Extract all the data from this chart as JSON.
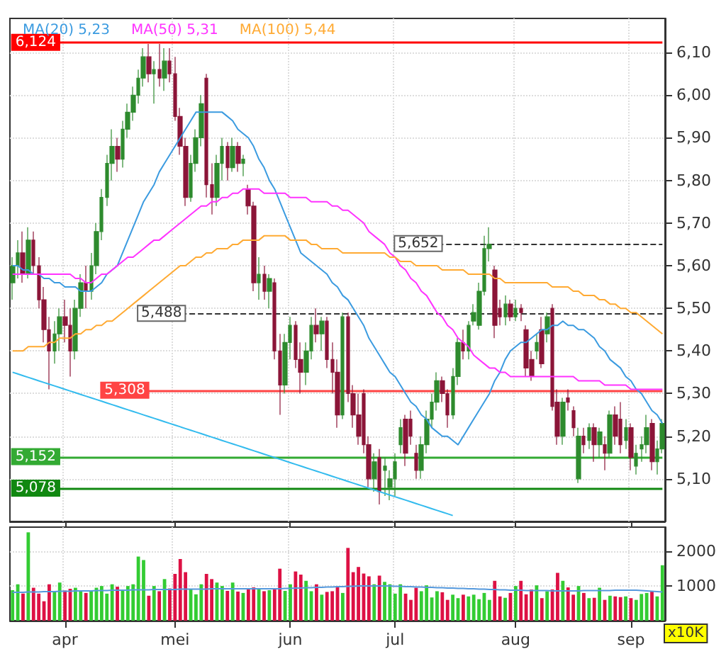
{
  "chart_data": [
    {
      "type": "candlestick",
      "categories": [
        null,
        null,
        null,
        null,
        null,
        null,
        null,
        null,
        null,
        null,
        null,
        null,
        null,
        null,
        null,
        null,
        null,
        null,
        null,
        null,
        null,
        null,
        null,
        null,
        null,
        null,
        null,
        null,
        null,
        null,
        null,
        null,
        null,
        null,
        null,
        null,
        null,
        null,
        null,
        null,
        null,
        null,
        null,
        null,
        null,
        null,
        null,
        null,
        null,
        null,
        null,
        null,
        null,
        null,
        null,
        null,
        null,
        null,
        null,
        null,
        null,
        null,
        null,
        null,
        null,
        null,
        null,
        null,
        null,
        null,
        null,
        null,
        null,
        null,
        null,
        null,
        null,
        null,
        null,
        null,
        null,
        null,
        null,
        null,
        null,
        null,
        null,
        null,
        null,
        null,
        null,
        null,
        null,
        null,
        null,
        null,
        null,
        null,
        null,
        null,
        null,
        null,
        null,
        null,
        null,
        null,
        null,
        null,
        null,
        null,
        null,
        null,
        null,
        null,
        null,
        null,
        null,
        null,
        null,
        null,
        null,
        null,
        null,
        null,
        null
      ],
      "ohlc": [
        [
          5.56,
          5.62,
          5.52,
          5.6
        ],
        [
          5.6,
          5.66,
          5.57,
          5.63
        ],
        [
          5.63,
          5.68,
          5.56,
          5.58
        ],
        [
          5.58,
          5.69,
          5.57,
          5.66
        ],
        [
          5.66,
          5.68,
          5.58,
          5.6
        ],
        [
          5.6,
          5.62,
          5.5,
          5.52
        ],
        [
          5.52,
          5.55,
          5.42,
          5.45
        ],
        [
          5.45,
          5.48,
          5.31,
          5.4
        ],
        [
          5.4,
          5.47,
          5.37,
          5.44
        ],
        [
          5.44,
          5.5,
          5.4,
          5.48
        ],
        [
          5.48,
          5.52,
          5.42,
          5.46
        ],
        [
          5.46,
          5.5,
          5.34,
          5.4
        ],
        [
          5.4,
          5.52,
          5.38,
          5.5
        ],
        [
          5.5,
          5.58,
          5.48,
          5.56
        ],
        [
          5.56,
          5.6,
          5.5,
          5.54
        ],
        [
          5.54,
          5.63,
          5.52,
          5.6
        ],
        [
          5.6,
          5.7,
          5.58,
          5.68
        ],
        [
          5.68,
          5.78,
          5.66,
          5.76
        ],
        [
          5.76,
          5.86,
          5.74,
          5.84
        ],
        [
          5.84,
          5.92,
          5.8,
          5.88
        ],
        [
          5.88,
          5.9,
          5.82,
          5.85
        ],
        [
          5.85,
          5.94,
          5.83,
          5.92
        ],
        [
          5.92,
          5.98,
          5.9,
          5.96
        ],
        [
          5.96,
          6.02,
          5.94,
          6.0
        ],
        [
          6.0,
          6.06,
          5.98,
          6.04
        ],
        [
          6.04,
          6.11,
          6.02,
          6.09
        ],
        [
          6.09,
          6.12,
          6.03,
          6.05
        ],
        [
          6.05,
          6.08,
          5.98,
          6.06
        ],
        [
          6.06,
          6.12,
          6.02,
          6.04
        ],
        [
          6.04,
          6.11,
          6.01,
          6.08
        ],
        [
          6.08,
          6.11,
          6.03,
          6.05
        ],
        [
          6.05,
          6.09,
          5.94,
          5.95
        ],
        [
          5.95,
          5.97,
          5.86,
          5.88
        ],
        [
          5.88,
          5.9,
          5.74,
          5.76
        ],
        [
          5.76,
          5.86,
          5.75,
          5.84
        ],
        [
          5.84,
          5.92,
          5.82,
          5.9
        ],
        [
          5.9,
          6.0,
          5.88,
          5.98
        ],
        [
          6.04,
          6.05,
          5.76,
          5.79
        ],
        [
          5.79,
          5.84,
          5.72,
          5.76
        ],
        [
          5.76,
          5.86,
          5.74,
          5.84
        ],
        [
          5.84,
          5.9,
          5.8,
          5.88
        ],
        [
          5.88,
          5.89,
          5.8,
          5.83
        ],
        [
          5.83,
          5.9,
          5.82,
          5.88
        ],
        [
          5.88,
          5.89,
          5.82,
          5.84
        ],
        [
          5.84,
          5.86,
          5.81,
          5.85
        ],
        [
          5.78,
          5.79,
          5.72,
          5.74
        ],
        [
          5.74,
          5.75,
          5.54,
          5.56
        ],
        [
          5.56,
          5.62,
          5.52,
          5.58
        ],
        [
          5.58,
          5.6,
          5.52,
          5.54
        ],
        [
          5.54,
          5.58,
          5.5,
          5.57
        ],
        [
          5.56,
          5.57,
          5.38,
          5.4
        ],
        [
          5.4,
          5.44,
          5.25,
          5.32
        ],
        [
          5.32,
          5.44,
          5.3,
          5.42
        ],
        [
          5.42,
          5.48,
          5.38,
          5.46
        ],
        [
          5.46,
          5.47,
          5.36,
          5.38
        ],
        [
          5.38,
          5.42,
          5.3,
          5.35
        ],
        [
          5.35,
          5.42,
          5.32,
          5.4
        ],
        [
          5.4,
          5.48,
          5.38,
          5.46
        ],
        [
          5.46,
          5.5,
          5.42,
          5.44
        ],
        [
          5.44,
          5.48,
          5.4,
          5.47
        ],
        [
          5.47,
          5.48,
          5.36,
          5.38
        ],
        [
          5.38,
          5.42,
          5.3,
          5.35
        ],
        [
          5.35,
          5.38,
          5.22,
          5.25
        ],
        [
          5.25,
          5.49,
          5.24,
          5.48
        ],
        [
          5.48,
          5.49,
          5.28,
          5.3
        ],
        [
          5.3,
          5.32,
          5.22,
          5.25
        ],
        [
          5.25,
          5.3,
          5.18,
          5.2
        ],
        [
          5.3,
          5.31,
          5.16,
          5.18
        ],
        [
          5.18,
          5.2,
          5.08,
          5.1
        ],
        [
          5.1,
          5.16,
          5.07,
          5.14
        ],
        [
          5.15,
          5.17,
          5.04,
          5.07
        ],
        [
          5.12,
          5.15,
          5.06,
          5.13
        ],
        [
          5.08,
          5.12,
          5.05,
          5.1
        ],
        [
          5.1,
          5.16,
          5.06,
          5.14
        ],
        [
          5.18,
          5.24,
          5.16,
          5.22
        ],
        [
          5.24,
          5.25,
          5.13,
          5.16
        ],
        [
          5.24,
          5.26,
          5.18,
          5.2
        ],
        [
          5.16,
          5.18,
          5.1,
          5.12
        ],
        [
          5.12,
          5.2,
          5.1,
          5.18
        ],
        [
          5.18,
          5.26,
          5.16,
          5.24
        ],
        [
          5.24,
          5.3,
          5.22,
          5.28
        ],
        [
          5.28,
          5.35,
          5.26,
          5.33
        ],
        [
          5.33,
          5.34,
          5.28,
          5.3
        ],
        [
          5.3,
          5.31,
          5.22,
          5.25
        ],
        [
          5.25,
          5.36,
          5.24,
          5.34
        ],
        [
          5.34,
          5.43,
          5.32,
          5.42
        ],
        [
          5.42,
          5.45,
          5.38,
          5.4
        ],
        [
          5.4,
          5.47,
          5.38,
          5.46
        ],
        [
          5.47,
          5.51,
          5.46,
          5.49
        ],
        [
          5.46,
          5.56,
          5.45,
          5.54
        ],
        [
          5.54,
          5.67,
          5.53,
          5.64
        ],
        [
          5.64,
          5.69,
          5.61,
          5.65
        ],
        [
          5.59,
          5.6,
          5.43,
          5.46
        ],
        [
          5.5,
          5.52,
          5.46,
          5.48
        ],
        [
          5.48,
          5.53,
          5.46,
          5.51
        ],
        [
          5.51,
          5.52,
          5.47,
          5.48
        ],
        [
          5.48,
          5.52,
          5.47,
          5.5
        ],
        [
          5.5,
          5.51,
          5.47,
          5.49
        ],
        [
          5.45,
          5.46,
          5.34,
          5.36
        ],
        [
          5.38,
          5.4,
          5.33,
          5.34
        ],
        [
          5.4,
          5.44,
          5.38,
          5.42
        ],
        [
          5.45,
          5.48,
          5.36,
          5.37
        ],
        [
          5.44,
          5.49,
          5.42,
          5.48
        ],
        [
          5.5,
          5.51,
          5.26,
          5.27
        ],
        [
          5.28,
          5.31,
          5.18,
          5.2
        ],
        [
          5.2,
          5.29,
          5.18,
          5.28
        ],
        [
          5.29,
          5.31,
          5.26,
          5.28
        ],
        [
          5.26,
          5.27,
          5.2,
          5.22
        ],
        [
          5.1,
          5.22,
          5.09,
          5.2
        ],
        [
          5.2,
          5.22,
          5.16,
          5.18
        ],
        [
          5.19,
          5.23,
          5.17,
          5.22
        ],
        [
          5.22,
          5.23,
          5.14,
          5.18
        ],
        [
          5.18,
          5.22,
          5.15,
          5.21
        ],
        [
          5.18,
          5.2,
          5.12,
          5.16
        ],
        [
          5.16,
          5.26,
          5.15,
          5.25
        ],
        [
          5.25,
          5.27,
          5.18,
          5.2
        ],
        [
          5.24,
          5.28,
          5.16,
          5.18
        ],
        [
          5.19,
          5.24,
          5.17,
          5.22
        ],
        [
          5.22,
          5.23,
          5.12,
          5.15
        ],
        [
          5.13,
          5.18,
          5.11,
          5.16
        ],
        [
          5.17,
          5.2,
          5.14,
          5.18
        ],
        [
          5.18,
          5.25,
          5.16,
          5.22
        ],
        [
          5.23,
          5.24,
          5.12,
          5.14
        ],
        [
          5.14,
          5.19,
          5.11,
          5.17
        ],
        [
          5.17,
          5.24,
          5.16,
          5.23
        ]
      ],
      "colors": [
        "#2e8b2e",
        "#2e8b2e",
        "#8b1538",
        "#2e8b2e",
        "#8b1538",
        "#8b1538",
        "#8b1538",
        "#8b1538",
        "#2e8b2e",
        "#2e8b2e",
        "#8b1538",
        "#8b1538",
        "#2e8b2e",
        "#2e8b2e",
        "#8b1538",
        "#2e8b2e",
        "#2e8b2e",
        "#2e8b2e",
        "#2e8b2e",
        "#2e8b2e",
        "#8b1538",
        "#2e8b2e",
        "#2e8b2e",
        "#2e8b2e",
        "#2e8b2e",
        "#2e8b2e",
        "#8b1538",
        "#2e8b2e",
        "#8b1538",
        "#2e8b2e",
        "#8b1538",
        "#8b1538",
        "#8b1538",
        "#8b1538",
        "#2e8b2e",
        "#2e8b2e",
        "#2e8b2e",
        "#8b1538",
        "#8b1538",
        "#2e8b2e",
        "#2e8b2e",
        "#8b1538",
        "#2e8b2e",
        "#8b1538",
        "#2e8b2e",
        "#8b1538",
        "#8b1538",
        "#2e8b2e",
        "#8b1538",
        "#2e8b2e",
        "#8b1538",
        "#8b1538",
        "#2e8b2e",
        "#2e8b2e",
        "#8b1538",
        "#8b1538",
        "#2e8b2e",
        "#2e8b2e",
        "#8b1538",
        "#2e8b2e",
        "#8b1538",
        "#8b1538",
        "#8b1538",
        "#2e8b2e",
        "#8b1538",
        "#8b1538",
        "#8b1538",
        "#8b1538",
        "#8b1538",
        "#2e8b2e",
        "#8b1538",
        "#2e8b2e",
        "#2e8b2e",
        "#2e8b2e",
        "#2e8b2e",
        "#8b1538",
        "#8b1538",
        "#8b1538",
        "#2e8b2e",
        "#2e8b2e",
        "#2e8b2e",
        "#2e8b2e",
        "#8b1538",
        "#8b1538",
        "#2e8b2e",
        "#2e8b2e",
        "#8b1538",
        "#2e8b2e",
        "#2e8b2e",
        "#2e8b2e",
        "#2e8b2e",
        "#2e8b2e",
        "#8b1538",
        "#8b1538",
        "#2e8b2e",
        "#8b1538",
        "#2e8b2e",
        "#8b1538",
        "#8b1538",
        "#8b1538",
        "#2e8b2e",
        "#8b1538",
        "#2e8b2e",
        "#8b1538",
        "#8b1538",
        "#2e8b2e",
        "#8b1538",
        "#8b1538",
        "#2e8b2e",
        "#8b1538",
        "#2e8b2e",
        "#8b1538",
        "#2e8b2e",
        "#8b1538",
        "#2e8b2e",
        "#8b1538",
        "#8b1538",
        "#2e8b2e",
        "#8b1538",
        "#2e8b2e",
        "#2e8b2e",
        "#2e8b2e",
        "#8b1538",
        "#2e8b2e",
        "#2e8b2e"
      ],
      "series": [
        {
          "type": "line",
          "name": "MA(20) 5,23",
          "color": "#3b9be0",
          "values": [
            5.6,
            5.6,
            5.59,
            5.59,
            5.58,
            5.58,
            5.57,
            5.57,
            5.56,
            5.56,
            5.55,
            5.55,
            5.55,
            5.54,
            5.54,
            5.54,
            5.55,
            5.56,
            5.58,
            5.59,
            5.6,
            5.63,
            5.66,
            5.69,
            5.72,
            5.75,
            5.77,
            5.79,
            5.82,
            5.84,
            5.86,
            5.88,
            5.9,
            5.92,
            5.94,
            5.96,
            5.96,
            5.96,
            5.96,
            5.96,
            5.96,
            5.95,
            5.94,
            5.92,
            5.91,
            5.9,
            5.88,
            5.85,
            5.83,
            5.8,
            5.78,
            5.75,
            5.72,
            5.69,
            5.66,
            5.63,
            5.62,
            5.61,
            5.6,
            5.59,
            5.58,
            5.56,
            5.55,
            5.53,
            5.52,
            5.5,
            5.48,
            5.46,
            5.43,
            5.41,
            5.39,
            5.37,
            5.35,
            5.34,
            5.32,
            5.3,
            5.28,
            5.27,
            5.25,
            5.24,
            5.22,
            5.21,
            5.2,
            5.2,
            5.19,
            5.18,
            5.2,
            5.22,
            5.24,
            5.26,
            5.28,
            5.3,
            5.33,
            5.35,
            5.38,
            5.4,
            5.41,
            5.42,
            5.42,
            5.43,
            5.44,
            5.45,
            5.45,
            5.46,
            5.46,
            5.47,
            5.46,
            5.46,
            5.45,
            5.45,
            5.44,
            5.43,
            5.41,
            5.4,
            5.38,
            5.37,
            5.36,
            5.34,
            5.33,
            5.31,
            5.3,
            5.28,
            5.26,
            5.25,
            5.23
          ]
        },
        {
          "type": "line",
          "name": "MA(50) 5,31",
          "color": "#ff33ff",
          "values": [
            5.58,
            5.58,
            5.58,
            5.58,
            5.58,
            5.58,
            5.58,
            5.58,
            5.58,
            5.58,
            5.58,
            5.58,
            5.57,
            5.57,
            5.56,
            5.56,
            5.57,
            5.58,
            5.58,
            5.59,
            5.6,
            5.61,
            5.62,
            5.62,
            5.63,
            5.64,
            5.65,
            5.66,
            5.66,
            5.67,
            5.68,
            5.69,
            5.7,
            5.71,
            5.72,
            5.73,
            5.74,
            5.74,
            5.75,
            5.75,
            5.76,
            5.76,
            5.77,
            5.77,
            5.78,
            5.78,
            5.78,
            5.78,
            5.77,
            5.77,
            5.77,
            5.77,
            5.77,
            5.76,
            5.76,
            5.76,
            5.76,
            5.75,
            5.75,
            5.75,
            5.75,
            5.74,
            5.74,
            5.73,
            5.73,
            5.72,
            5.71,
            5.7,
            5.68,
            5.67,
            5.66,
            5.65,
            5.63,
            5.62,
            5.6,
            5.59,
            5.57,
            5.56,
            5.54,
            5.53,
            5.51,
            5.49,
            5.48,
            5.46,
            5.45,
            5.43,
            5.42,
            5.41,
            5.39,
            5.38,
            5.37,
            5.36,
            5.36,
            5.35,
            5.35,
            5.34,
            5.34,
            5.34,
            5.34,
            5.34,
            5.34,
            5.34,
            5.34,
            5.34,
            5.34,
            5.34,
            5.34,
            5.34,
            5.33,
            5.33,
            5.33,
            5.33,
            5.33,
            5.32,
            5.32,
            5.32,
            5.32,
            5.32,
            5.31,
            5.31,
            5.31,
            5.31,
            5.31,
            5.31,
            5.31
          ]
        },
        {
          "type": "line",
          "name": "MA(100) 5,44",
          "color": "#ffaa33",
          "values": [
            5.4,
            5.4,
            5.4,
            5.41,
            5.41,
            5.41,
            5.41,
            5.42,
            5.42,
            5.43,
            5.43,
            5.43,
            5.44,
            5.44,
            5.45,
            5.45,
            5.46,
            5.46,
            5.47,
            5.47,
            5.48,
            5.49,
            5.5,
            5.51,
            5.52,
            5.53,
            5.54,
            5.55,
            5.56,
            5.57,
            5.58,
            5.59,
            5.6,
            5.6,
            5.61,
            5.62,
            5.62,
            5.63,
            5.63,
            5.64,
            5.64,
            5.64,
            5.65,
            5.65,
            5.66,
            5.66,
            5.66,
            5.66,
            5.67,
            5.67,
            5.67,
            5.67,
            5.67,
            5.66,
            5.66,
            5.66,
            5.66,
            5.65,
            5.65,
            5.64,
            5.64,
            5.64,
            5.64,
            5.63,
            5.63,
            5.63,
            5.63,
            5.63,
            5.63,
            5.63,
            5.63,
            5.63,
            5.62,
            5.62,
            5.61,
            5.61,
            5.61,
            5.6,
            5.6,
            5.6,
            5.6,
            5.6,
            5.59,
            5.59,
            5.59,
            5.59,
            5.59,
            5.58,
            5.58,
            5.58,
            5.58,
            5.58,
            5.57,
            5.57,
            5.56,
            5.56,
            5.56,
            5.56,
            5.56,
            5.56,
            5.56,
            5.56,
            5.56,
            5.55,
            5.55,
            5.55,
            5.55,
            5.54,
            5.54,
            5.53,
            5.53,
            5.53,
            5.52,
            5.52,
            5.51,
            5.51,
            5.5,
            5.5,
            5.49,
            5.49,
            5.48,
            5.47,
            5.46,
            5.45,
            5.44
          ]
        },
        {
          "type": "line",
          "color": "#33bbee",
          "values": [
            5.35,
            5.346,
            5.342,
            5.338,
            5.334,
            5.33,
            5.326,
            5.322,
            5.318,
            5.314,
            5.31,
            5.306,
            5.302,
            5.298,
            5.294,
            5.29,
            5.286,
            5.282,
            5.278,
            5.274,
            5.27,
            5.266,
            5.262,
            5.258,
            5.254,
            5.25,
            5.246,
            5.242,
            5.238,
            5.234,
            5.23,
            5.226,
            5.222,
            5.218,
            5.214,
            5.21,
            5.206,
            5.202,
            5.198,
            5.194,
            5.19,
            5.186,
            5.182,
            5.178,
            5.174,
            5.17,
            5.166,
            5.162,
            5.158,
            5.154,
            5.15,
            5.146,
            5.142,
            5.138,
            5.134,
            5.13,
            5.126,
            5.122,
            5.118,
            5.114,
            5.11,
            5.106,
            5.102,
            5.098,
            5.094,
            5.09,
            5.086,
            5.082,
            5.078,
            5.074,
            5.07,
            5.066,
            5.062,
            5.058,
            5.054,
            5.05,
            5.046,
            5.042,
            5.038,
            5.034,
            5.03,
            5.026,
            5.022,
            5.018,
            5.014,
            null,
            null,
            null,
            null,
            null,
            null,
            null,
            null,
            null,
            null,
            null,
            null,
            null,
            null,
            null,
            null,
            null,
            null,
            null,
            null,
            null,
            null,
            null,
            null,
            null,
            null,
            null,
            null,
            null,
            null,
            null,
            null,
            null,
            null,
            null,
            null,
            null,
            null,
            null,
            null
          ]
        }
      ],
      "ref_lines": [
        {
          "axis": "y",
          "value": 6.124,
          "label": "6,124",
          "color": "#ff0000"
        },
        {
          "axis": "y",
          "value": 5.652,
          "label": "5,652",
          "color": "#333333",
          "line_style": "dashed"
        },
        {
          "axis": "y",
          "value": 5.488,
          "label": "5,488",
          "color": "#333333",
          "line_style": "dashed"
        },
        {
          "axis": "y",
          "value": 5.308,
          "label": "5,308",
          "color": "#ff4444"
        },
        {
          "axis": "y",
          "value": 5.152,
          "label": "5,152",
          "color": "#33aa33"
        },
        {
          "axis": "y",
          "value": 5.078,
          "label": "5,078",
          "color": "#118811"
        }
      ],
      "ylim": [
        5.0,
        6.18
      ],
      "yticks": [
        {
          "value": 5.1,
          "label": "5,10"
        },
        {
          "value": 5.2,
          "label": "5,20"
        },
        {
          "value": 5.3,
          "label": "5,30"
        },
        {
          "value": 5.4,
          "label": "5,40"
        },
        {
          "value": 5.5,
          "label": "5,50"
        },
        {
          "value": 5.6,
          "label": "5,60"
        },
        {
          "value": 5.7,
          "label": "5,70"
        },
        {
          "value": 5.8,
          "label": "5,80"
        },
        {
          "value": 5.9,
          "label": "5,90"
        },
        {
          "value": 6.0,
          "label": "6,00"
        },
        {
          "value": 6.1,
          "label": "6,10"
        }
      ],
      "tick_labels": "y",
      "grid": true,
      "legend": "top left"
    },
    {
      "type": "bar",
      "categories": [
        null,
        null,
        null,
        null,
        null,
        null,
        null,
        null,
        null,
        null,
        "apr",
        null,
        null,
        null,
        null,
        null,
        null,
        null,
        null,
        null,
        null,
        null,
        null,
        null,
        null,
        null,
        null,
        null,
        null,
        null,
        null,
        "mei",
        null,
        null,
        null,
        null,
        null,
        null,
        null,
        null,
        null,
        null,
        null,
        null,
        null,
        null,
        null,
        null,
        null,
        null,
        null,
        null,
        null,
        "jun",
        null,
        null,
        null,
        null,
        null,
        null,
        null,
        null,
        null,
        null,
        null,
        null,
        null,
        null,
        null,
        null,
        null,
        null,
        null,
        "jul",
        null,
        null,
        null,
        null,
        null,
        null,
        null,
        null,
        null,
        null,
        null,
        null,
        null,
        null,
        null,
        null,
        null,
        null,
        null,
        null,
        null,
        null,
        "aug",
        null,
        null,
        null,
        null,
        null,
        null,
        null,
        null,
        null,
        null,
        null,
        null,
        null,
        null,
        null,
        null,
        null,
        null,
        null,
        null,
        null,
        "sep",
        null,
        null,
        null,
        null,
        null,
        null
      ],
      "values": [
        880,
        1050,
        780,
        2550,
        950,
        780,
        560,
        1050,
        850,
        1100,
        870,
        920,
        950,
        880,
        800,
        860,
        950,
        1000,
        780,
        1050,
        980,
        880,
        1000,
        1050,
        1850,
        1750,
        720,
        1000,
        850,
        1200,
        930,
        1350,
        1780,
        1400,
        900,
        760,
        1050,
        1350,
        1200,
        1100,
        1000,
        860,
        1100,
        840,
        800,
        910,
        960,
        940,
        850,
        880,
        910,
        1500,
        860,
        1050,
        1420,
        1330,
        1150,
        850,
        1050,
        750,
        830,
        850,
        1000,
        800,
        2100,
        1400,
        1550,
        1360,
        1280,
        1050,
        1300,
        1120,
        1050,
        780,
        1050,
        780,
        600,
        950,
        850,
        1020,
        670,
        850,
        820,
        600,
        750,
        650,
        750,
        700,
        750,
        620,
        800,
        600,
        1150,
        700,
        660,
        800,
        1000,
        1150,
        760,
        900,
        1020,
        650,
        850,
        900,
        1380,
        1150,
        960,
        750,
        1000,
        800,
        650,
        660,
        950,
        600,
        720,
        700,
        680,
        700,
        650,
        600,
        770,
        800,
        850,
        700,
        1600
      ],
      "colors": [
        "#33cc33",
        "#33cc33",
        "#dd1144",
        "#33cc33",
        "#dd1144",
        "#dd1144",
        "#dd1144",
        "#dd1144",
        "#33cc33",
        "#33cc33",
        "#dd1144",
        "#dd1144",
        "#33cc33",
        "#33cc33",
        "#dd1144",
        "#33cc33",
        "#33cc33",
        "#33cc33",
        "#33cc33",
        "#33cc33",
        "#dd1144",
        "#33cc33",
        "#33cc33",
        "#33cc33",
        "#33cc33",
        "#33cc33",
        "#dd1144",
        "#33cc33",
        "#dd1144",
        "#33cc33",
        "#dd1144",
        "#dd1144",
        "#dd1144",
        "#dd1144",
        "#33cc33",
        "#33cc33",
        "#33cc33",
        "#dd1144",
        "#dd1144",
        "#33cc33",
        "#33cc33",
        "#dd1144",
        "#33cc33",
        "#dd1144",
        "#33cc33",
        "#dd1144",
        "#dd1144",
        "#33cc33",
        "#dd1144",
        "#33cc33",
        "#dd1144",
        "#dd1144",
        "#33cc33",
        "#33cc33",
        "#dd1144",
        "#dd1144",
        "#33cc33",
        "#33cc33",
        "#dd1144",
        "#33cc33",
        "#dd1144",
        "#dd1144",
        "#dd1144",
        "#33cc33",
        "#dd1144",
        "#dd1144",
        "#dd1144",
        "#dd1144",
        "#dd1144",
        "#33cc33",
        "#dd1144",
        "#33cc33",
        "#33cc33",
        "#33cc33",
        "#33cc33",
        "#dd1144",
        "#dd1144",
        "#dd1144",
        "#33cc33",
        "#33cc33",
        "#33cc33",
        "#33cc33",
        "#dd1144",
        "#dd1144",
        "#33cc33",
        "#33cc33",
        "#dd1144",
        "#33cc33",
        "#33cc33",
        "#33cc33",
        "#33cc33",
        "#33cc33",
        "#dd1144",
        "#dd1144",
        "#33cc33",
        "#dd1144",
        "#33cc33",
        "#dd1144",
        "#dd1144",
        "#dd1144",
        "#33cc33",
        "#dd1144",
        "#33cc33",
        "#dd1144",
        "#dd1144",
        "#33cc33",
        "#dd1144",
        "#dd1144",
        "#33cc33",
        "#dd1144",
        "#33cc33",
        "#dd1144",
        "#33cc33",
        "#dd1144",
        "#33cc33",
        "#dd1144",
        "#dd1144",
        "#33cc33",
        "#dd1144",
        "#33cc33",
        "#33cc33",
        "#33cc33",
        "#dd1144",
        "#33cc33",
        "#33cc33"
      ],
      "series": [
        {
          "type": "line",
          "color": "#5599dd",
          "values": [
            820,
            820,
            820,
            830,
            830,
            830,
            840,
            840,
            840,
            850,
            850,
            850,
            860,
            860,
            860,
            860,
            870,
            870,
            870,
            880,
            880,
            880,
            880,
            890,
            890,
            890,
            890,
            900,
            900,
            900,
            900,
            900,
            910,
            910,
            910,
            910,
            910,
            910,
            920,
            920,
            920,
            920,
            920,
            920,
            920,
            920,
            920,
            920,
            920,
            920,
            920,
            920,
            930,
            930,
            940,
            940,
            950,
            950,
            960,
            960,
            970,
            970,
            980,
            980,
            990,
            990,
            1000,
            1000,
            1000,
            1000,
            1000,
            1000,
            1000,
            990,
            990,
            980,
            980,
            970,
            970,
            960,
            960,
            950,
            950,
            940,
            940,
            930,
            930,
            920,
            920,
            910,
            910,
            900,
            900,
            890,
            890,
            880,
            880,
            880,
            870,
            870,
            870,
            870,
            870,
            860,
            860,
            860,
            860,
            860,
            860,
            870,
            870,
            870,
            870,
            870,
            870,
            880,
            880,
            880,
            880,
            880,
            870,
            860,
            850,
            840,
            830
          ]
        }
      ],
      "ylim": [
        0,
        2700
      ],
      "yticks": [
        1000,
        2000
      ],
      "ylabel": "x10K",
      "grid": true
    }
  ]
}
